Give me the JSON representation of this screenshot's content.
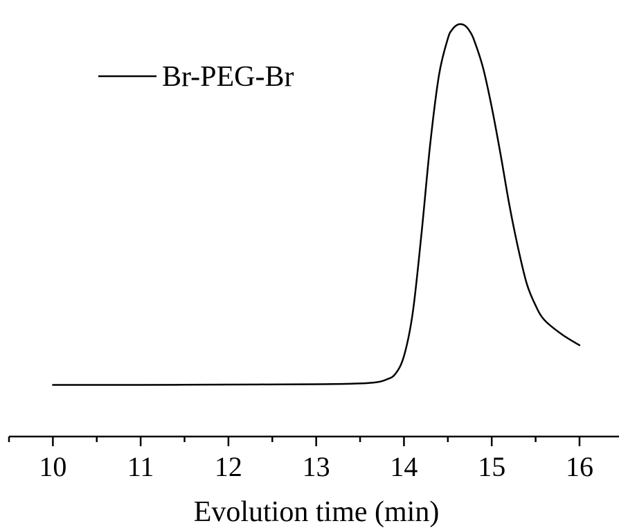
{
  "chart_data": {
    "type": "line",
    "title": "",
    "xlabel": "Evolution time (min)",
    "ylabel": "",
    "xlim": [
      9.5,
      16.45
    ],
    "ylim": [
      -0.12,
      1.04
    ],
    "x_ticks": [
      "10",
      "11",
      "12",
      "13",
      "14",
      "15",
      "16"
    ],
    "x_minor_ticks": [
      9.5,
      10.5,
      11.5,
      12.5,
      13.5,
      14.5,
      15.5
    ],
    "y_axis_visible": false,
    "grid": false,
    "legend": {
      "position": "top-left",
      "entries": [
        "Br-PEG-Br"
      ]
    },
    "series": [
      {
        "name": "Br-PEG-Br",
        "color": "#000000",
        "x": [
          10.0,
          11.0,
          12.0,
          13.0,
          13.5,
          13.7,
          13.8,
          13.9,
          14.0,
          14.1,
          14.2,
          14.3,
          14.4,
          14.5,
          14.55,
          14.6,
          14.65,
          14.7,
          14.75,
          14.8,
          14.9,
          15.0,
          15.1,
          15.2,
          15.3,
          15.4,
          15.5,
          15.6,
          15.8,
          16.0
        ],
        "y": [
          0.0,
          0.0,
          0.001,
          0.002,
          0.004,
          0.008,
          0.015,
          0.03,
          0.08,
          0.2,
          0.42,
          0.67,
          0.86,
          0.96,
          0.985,
          0.997,
          1.0,
          0.995,
          0.98,
          0.955,
          0.88,
          0.77,
          0.64,
          0.5,
          0.38,
          0.28,
          0.22,
          0.18,
          0.14,
          0.11
        ]
      }
    ]
  }
}
